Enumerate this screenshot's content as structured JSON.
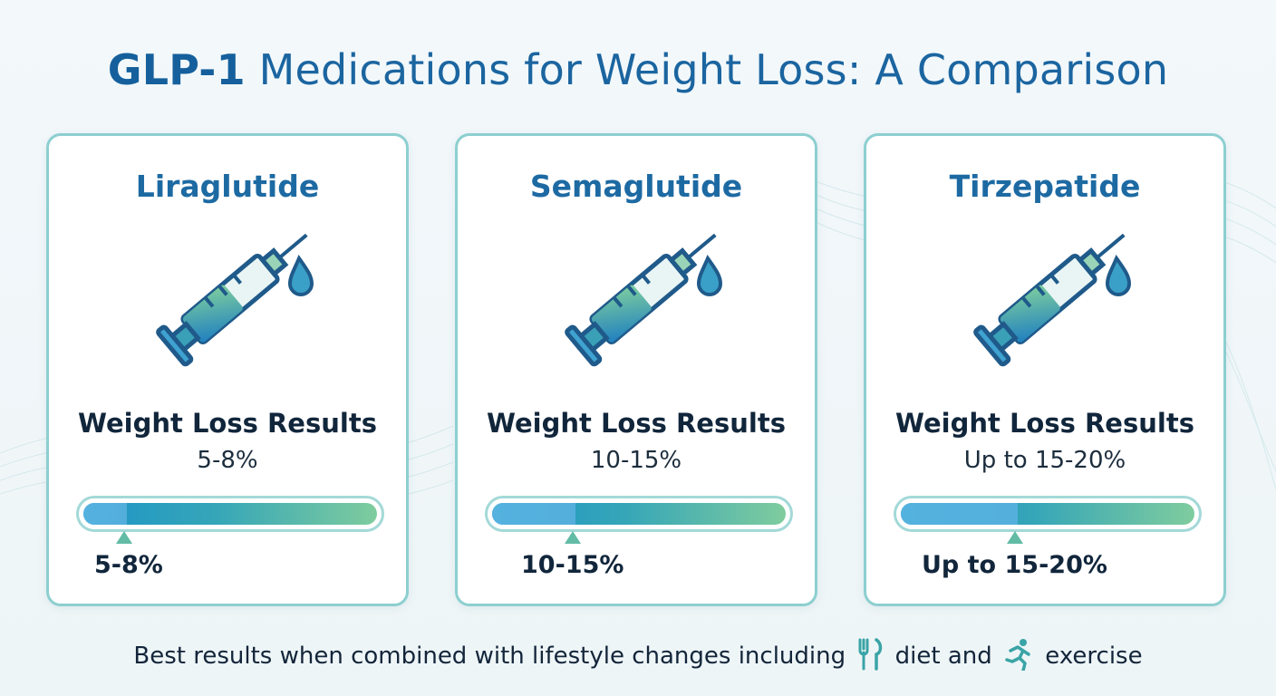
{
  "title": {
    "bold": "GLP-1",
    "rest": " Medications for Weight Loss: A Comparison"
  },
  "cards": [
    {
      "name": "Liraglutide",
      "heading": "Weight Loss Results",
      "value": "5-8%",
      "bar_label": "5-8%",
      "range_pct": [
        5,
        8
      ]
    },
    {
      "name": "Semaglutide",
      "heading": "Weight Loss Results",
      "value": "10-15%",
      "bar_label": "10-15%",
      "range_pct": [
        10,
        15
      ]
    },
    {
      "name": "Tirzepatide",
      "heading": "Weight Loss Results",
      "value": "Up to 15-20%",
      "bar_label": "Up to 15-20%",
      "range_pct": [
        15,
        20
      ]
    }
  ],
  "footer": {
    "part1": "Best results when combined with lifestyle changes including",
    "part2": "diet and",
    "part3": "exercise"
  },
  "icons": [
    "syringe-icon",
    "droplet-icon",
    "fork-knife-icon",
    "running-person-icon"
  ],
  "colors": {
    "title": "#1b65a0",
    "card_border": "#8dcfd0",
    "bar_start": "#1e94c8",
    "bar_end": "#7fcc9e"
  }
}
